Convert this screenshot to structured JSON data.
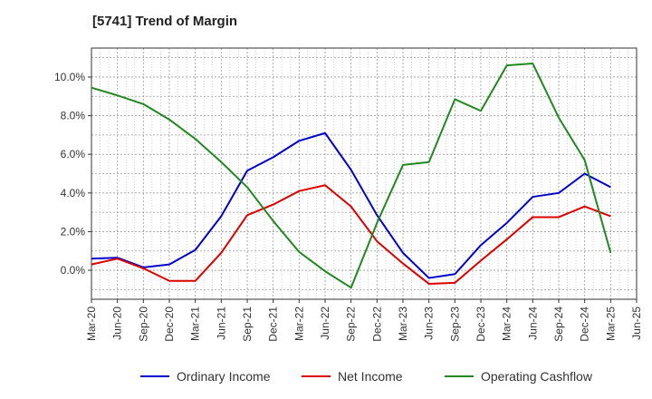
{
  "chart_data": {
    "type": "line",
    "title": "[5741]  Trend of Margin",
    "xlabel": "",
    "ylabel": "",
    "ylim": [
      -1.5,
      11.5
    ],
    "yticks": [
      0.0,
      2.0,
      4.0,
      6.0,
      8.0,
      10.0
    ],
    "ytick_labels": [
      "0.0%",
      "2.0%",
      "4.0%",
      "6.0%",
      "8.0%",
      "10.0%"
    ],
    "grid": true,
    "legend_position": "bottom",
    "x": [
      "Mar-20",
      "Jun-20",
      "Sep-20",
      "Dec-20",
      "Mar-21",
      "Jun-21",
      "Sep-21",
      "Dec-21",
      "Mar-22",
      "Jun-22",
      "Sep-22",
      "Dec-22",
      "Mar-23",
      "Jun-23",
      "Sep-23",
      "Dec-23",
      "Mar-24",
      "Jun-24",
      "Sep-24",
      "Dec-24",
      "Mar-25",
      "Jun-25"
    ],
    "x_tick_labels": [
      "Mar-20",
      "Jun-20",
      "Sep-20",
      "Dec-20",
      "Mar-21",
      "Jun-21",
      "Sep-21",
      "Dec-21",
      "Mar-22",
      "Jun-22",
      "Sep-22",
      "Dec-22",
      "Mar-23",
      "Jun-23",
      "Sep-23",
      "Dec-23",
      "Mar-24",
      "Jun-24",
      "Sep-24",
      "Dec-24",
      "Mar-25",
      "Jun-25"
    ],
    "series": [
      {
        "name": "Ordinary Income",
        "color": "#0000cc",
        "values": [
          0.6,
          0.65,
          0.15,
          0.3,
          1.05,
          2.8,
          5.15,
          5.85,
          6.7,
          7.1,
          5.2,
          2.85,
          0.9,
          -0.4,
          -0.2,
          1.3,
          2.45,
          3.8,
          4.0,
          5.0,
          4.3,
          null
        ]
      },
      {
        "name": "Net Income",
        "color": "#dd0000",
        "values": [
          0.3,
          0.6,
          0.1,
          -0.55,
          -0.55,
          0.9,
          2.85,
          3.4,
          4.1,
          4.4,
          3.3,
          1.5,
          0.35,
          -0.7,
          -0.65,
          0.5,
          1.6,
          2.75,
          2.75,
          3.3,
          2.8,
          null
        ]
      },
      {
        "name": "Operating Cashflow",
        "color": "#228822",
        "values": [
          9.45,
          9.05,
          8.6,
          7.8,
          6.8,
          5.6,
          4.3,
          2.55,
          0.95,
          -0.05,
          -0.9,
          2.45,
          5.45,
          5.6,
          8.85,
          8.25,
          10.6,
          10.7,
          7.9,
          5.7,
          0.9,
          null
        ]
      }
    ]
  }
}
